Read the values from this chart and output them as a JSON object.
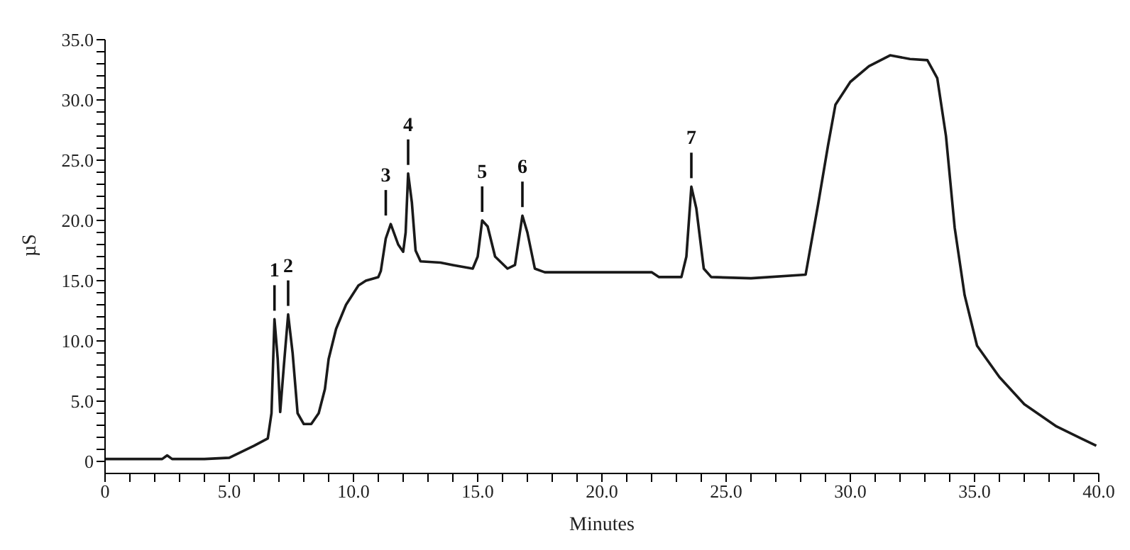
{
  "chart_data": {
    "type": "line",
    "xlabel": "Minutes",
    "ylabel": "µS",
    "xlim": [
      0,
      40
    ],
    "ylim": [
      -1,
      35
    ],
    "xticks": [
      {
        "value": 0,
        "label": "0"
      },
      {
        "value": 1,
        "label": null
      },
      {
        "value": 2,
        "label": null
      },
      {
        "value": 3,
        "label": null
      },
      {
        "value": 4,
        "label": null
      },
      {
        "value": 5,
        "label": "5.0"
      },
      {
        "value": 6,
        "label": null
      },
      {
        "value": 7,
        "label": null
      },
      {
        "value": 8,
        "label": null
      },
      {
        "value": 9,
        "label": null
      },
      {
        "value": 10,
        "label": "10.0"
      },
      {
        "value": 11,
        "label": null
      },
      {
        "value": 12,
        "label": null
      },
      {
        "value": 13,
        "label": null
      },
      {
        "value": 14,
        "label": null
      },
      {
        "value": 15,
        "label": "15.0"
      },
      {
        "value": 16,
        "label": null
      },
      {
        "value": 17,
        "label": null
      },
      {
        "value": 18,
        "label": null
      },
      {
        "value": 19,
        "label": null
      },
      {
        "value": 20,
        "label": "20.0"
      },
      {
        "value": 21,
        "label": null
      },
      {
        "value": 22,
        "label": null
      },
      {
        "value": 23,
        "label": null
      },
      {
        "value": 24,
        "label": null
      },
      {
        "value": 25,
        "label": "25.0"
      },
      {
        "value": 26,
        "label": null
      },
      {
        "value": 27,
        "label": null
      },
      {
        "value": 28,
        "label": null
      },
      {
        "value": 29,
        "label": null
      },
      {
        "value": 30,
        "label": "30.0"
      },
      {
        "value": 31,
        "label": null
      },
      {
        "value": 32,
        "label": null
      },
      {
        "value": 33,
        "label": null
      },
      {
        "value": 34,
        "label": null
      },
      {
        "value": 35,
        "label": "35.0"
      },
      {
        "value": 36,
        "label": null
      },
      {
        "value": 37,
        "label": null
      },
      {
        "value": 38,
        "label": null
      },
      {
        "value": 39,
        "label": null
      },
      {
        "value": 40,
        "label": "40.0"
      }
    ],
    "yticks": [
      {
        "value": 0,
        "label": "0"
      },
      {
        "value": 1,
        "label": null
      },
      {
        "value": 2,
        "label": null
      },
      {
        "value": 3,
        "label": null
      },
      {
        "value": 4,
        "label": null
      },
      {
        "value": 5,
        "label": "5.0"
      },
      {
        "value": 6,
        "label": null
      },
      {
        "value": 7,
        "label": null
      },
      {
        "value": 8,
        "label": null
      },
      {
        "value": 9,
        "label": null
      },
      {
        "value": 10,
        "label": "10.0"
      },
      {
        "value": 11,
        "label": null
      },
      {
        "value": 12,
        "label": null
      },
      {
        "value": 13,
        "label": null
      },
      {
        "value": 14,
        "label": null
      },
      {
        "value": 15,
        "label": "15.0"
      },
      {
        "value": 16,
        "label": null
      },
      {
        "value": 17,
        "label": null
      },
      {
        "value": 18,
        "label": null
      },
      {
        "value": 19,
        "label": null
      },
      {
        "value": 20,
        "label": "20.0"
      },
      {
        "value": 21,
        "label": null
      },
      {
        "value": 22,
        "label": null
      },
      {
        "value": 23,
        "label": null
      },
      {
        "value": 24,
        "label": null
      },
      {
        "value": 25,
        "label": "25.0"
      },
      {
        "value": 26,
        "label": null
      },
      {
        "value": 27,
        "label": null
      },
      {
        "value": 28,
        "label": null
      },
      {
        "value": 29,
        "label": null
      },
      {
        "value": 30,
        "label": "30.0"
      },
      {
        "value": 31,
        "label": null
      },
      {
        "value": 32,
        "label": null
      },
      {
        "value": 33,
        "label": null
      },
      {
        "value": 34,
        "label": null
      },
      {
        "value": 35,
        "label": "35.0"
      }
    ],
    "x": [
      0,
      2.3,
      2.5,
      2.7,
      4.0,
      5.0,
      5.5,
      6.0,
      6.55,
      6.7,
      6.82,
      6.95,
      7.05,
      7.2,
      7.37,
      7.55,
      7.75,
      8.0,
      8.3,
      8.6,
      8.85,
      9.0,
      9.3,
      9.7,
      10.2,
      10.5,
      11.0,
      11.1,
      11.3,
      11.5,
      11.8,
      12.0,
      12.1,
      12.2,
      12.35,
      12.5,
      12.7,
      13.5,
      14.0,
      14.8,
      15.0,
      15.18,
      15.4,
      15.7,
      16.2,
      16.5,
      16.8,
      17.0,
      17.3,
      17.7,
      20.0,
      22.0,
      22.3,
      23.2,
      23.4,
      23.6,
      23.8,
      24.1,
      24.4,
      26.0,
      28.2,
      28.7,
      29.1,
      29.4,
      30.0,
      30.75,
      31.6,
      32.4,
      33.1,
      33.5,
      33.85,
      34.2,
      34.6,
      35.1,
      36.0,
      37.0,
      38.3,
      39.9
    ],
    "series": [
      {
        "color": "#1a1a1a",
        "values": [
          0.2,
          0.2,
          0.5,
          0.2,
          0.2,
          0.3,
          0.8,
          1.3,
          1.9,
          4.0,
          11.8,
          8.5,
          4.1,
          8.0,
          12.2,
          9.0,
          4.0,
          3.1,
          3.1,
          4.0,
          6.0,
          8.5,
          11.0,
          13.0,
          14.6,
          15.0,
          15.3,
          15.8,
          18.5,
          19.7,
          18.0,
          17.4,
          19.0,
          23.9,
          21.5,
          17.5,
          16.6,
          16.5,
          16.3,
          16.0,
          17.0,
          20.0,
          19.5,
          17.0,
          16.0,
          16.3,
          20.4,
          19.0,
          16.0,
          15.7,
          15.7,
          15.7,
          15.3,
          15.3,
          17.0,
          22.8,
          21.0,
          16.0,
          15.3,
          15.2,
          15.5,
          21.3,
          26.2,
          29.6,
          31.5,
          32.8,
          33.7,
          33.4,
          33.3,
          31.8,
          27.0,
          19.4,
          13.8,
          9.6,
          7.0,
          4.75,
          2.9,
          1.3
        ]
      }
    ],
    "annotations": [
      {
        "text": "1",
        "x": 6.82,
        "y": 11.8
      },
      {
        "text": "2",
        "x": 7.37,
        "y": 12.2
      },
      {
        "text": "3",
        "x": 11.3,
        "y": 19.7
      },
      {
        "text": "4",
        "x": 12.2,
        "y": 23.9
      },
      {
        "text": "5",
        "x": 15.18,
        "y": 20.0
      },
      {
        "text": "6",
        "x": 16.8,
        "y": 20.4
      },
      {
        "text": "7",
        "x": 23.6,
        "y": 22.8
      }
    ]
  }
}
